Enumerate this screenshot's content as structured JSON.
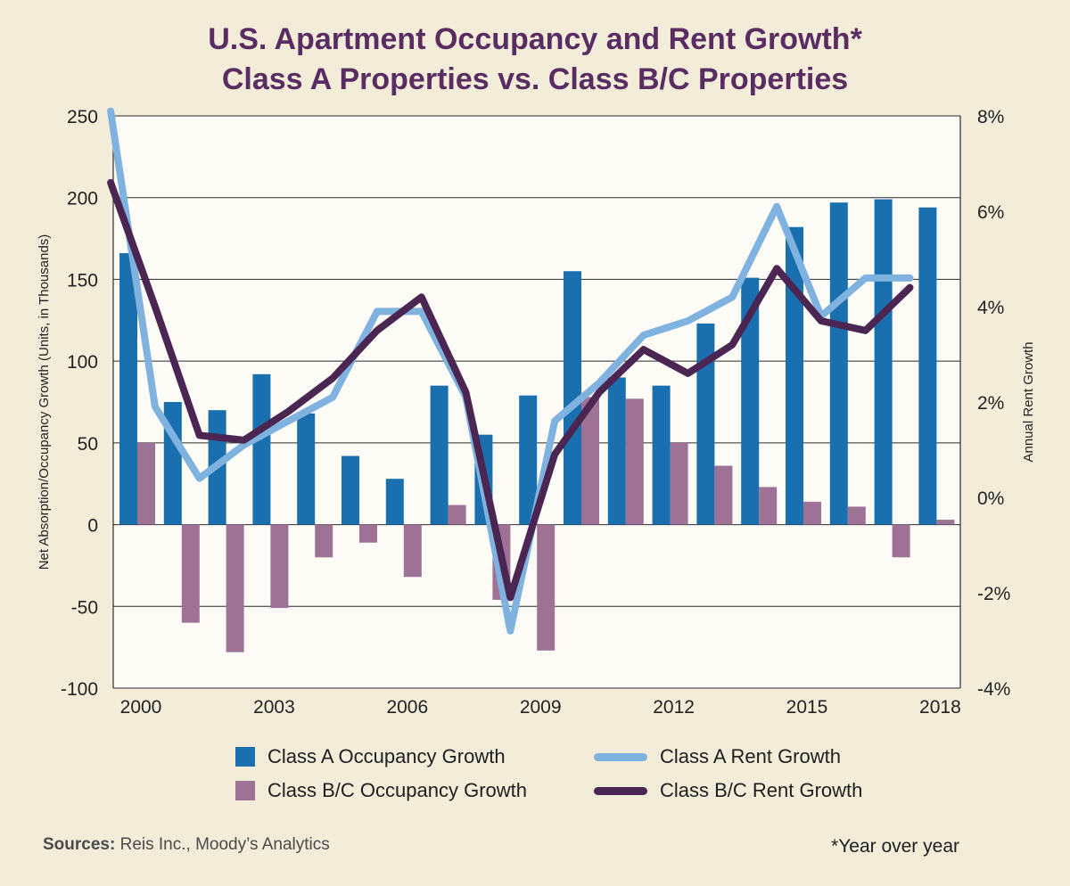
{
  "title_line1": "U.S. Apartment Occupancy and Rent Growth*",
  "title_line2": "Class A Properties vs. Class B/C Properties",
  "sources_label": "Sources:",
  "sources_text": "Reis Inc., Moody’s Analytics",
  "footnote": "*Year over year",
  "colors": {
    "background": "#f3ecd9",
    "plot_background": "#fdfbf6",
    "class_a_occupancy": "#1a6faf",
    "class_bc_occupancy": "#9e7295",
    "class_a_rent": "#7fb2de",
    "class_bc_rent": "#4b2652",
    "title": "#5a2d62"
  },
  "legend": {
    "class_a_occupancy": "Class A Occupancy Growth",
    "class_bc_occupancy": "Class B/C Occupancy Growth",
    "class_a_rent": "Class A Rent Growth",
    "class_bc_rent": "Class B/C Rent Growth"
  },
  "chart_data": {
    "type": "bar",
    "combo": "bars on left axis, lines on right axis",
    "x": [
      2000,
      2001,
      2002,
      2003,
      2004,
      2005,
      2006,
      2007,
      2008,
      2009,
      2010,
      2011,
      2012,
      2013,
      2014,
      2015,
      2016,
      2017,
      2018
    ],
    "x_tick_labels": [
      "2000",
      "2003",
      "2006",
      "2009",
      "2012",
      "2015",
      "2018"
    ],
    "ylabel": "Net Absorption/Occupancy Growth (Units, in Thousands)",
    "ylim": [
      -100,
      250
    ],
    "yticks": [
      "250",
      "200",
      "150",
      "100",
      "50",
      "0",
      "-50",
      "-100"
    ],
    "y2label": "Annual Rent Growth",
    "y2lim": [
      -4,
      8
    ],
    "y2ticks": [
      "8%",
      "6%",
      "4%",
      "2%",
      "0%",
      "-2%",
      "-4%"
    ],
    "grid": "horizontal",
    "series": [
      {
        "name": "Class A Occupancy Growth",
        "kind": "bar",
        "axis": "left",
        "values": [
          166,
          75,
          70,
          92,
          68,
          42,
          28,
          85,
          55,
          79,
          155,
          90,
          85,
          123,
          151,
          182,
          197,
          199,
          194
        ]
      },
      {
        "name": "Class B/C Occupancy Growth",
        "kind": "bar",
        "axis": "left",
        "values": [
          50,
          -60,
          -78,
          -51,
          -20,
          -11,
          -32,
          12,
          -46,
          -77,
          78,
          77,
          50,
          36,
          23,
          14,
          11,
          -20,
          3
        ]
      },
      {
        "name": "Class A Rent Growth",
        "kind": "line",
        "axis": "right",
        "points": [
          [
            1999.6,
            8.1
          ],
          [
            2000.6,
            1.9
          ],
          [
            2001.6,
            0.4
          ],
          [
            2002.6,
            1.1
          ],
          [
            2003.6,
            1.6
          ],
          [
            2004.6,
            2.1
          ],
          [
            2005.6,
            3.9
          ],
          [
            2006.6,
            3.9
          ],
          [
            2007.6,
            2.1
          ],
          [
            2008.6,
            -2.8
          ],
          [
            2009.6,
            1.6
          ],
          [
            2010.6,
            2.4
          ],
          [
            2011.6,
            3.4
          ],
          [
            2012.6,
            3.7
          ],
          [
            2013.6,
            4.2
          ],
          [
            2014.6,
            6.1
          ],
          [
            2015.6,
            3.8
          ],
          [
            2016.6,
            4.6
          ],
          [
            2017.6,
            4.6
          ]
        ]
      },
      {
        "name": "Class B/C Rent Growth",
        "kind": "line",
        "axis": "right",
        "points": [
          [
            1999.6,
            6.6
          ],
          [
            2000.6,
            4.0
          ],
          [
            2001.6,
            1.3
          ],
          [
            2002.6,
            1.2
          ],
          [
            2003.6,
            1.8
          ],
          [
            2004.6,
            2.5
          ],
          [
            2005.6,
            3.5
          ],
          [
            2006.6,
            4.2
          ],
          [
            2007.6,
            2.2
          ],
          [
            2008.6,
            -2.1
          ],
          [
            2009.6,
            0.9
          ],
          [
            2010.6,
            2.2
          ],
          [
            2011.6,
            3.1
          ],
          [
            2012.6,
            2.6
          ],
          [
            2013.6,
            3.2
          ],
          [
            2014.6,
            4.8
          ],
          [
            2015.6,
            3.7
          ],
          [
            2016.6,
            3.5
          ],
          [
            2017.6,
            4.4
          ]
        ]
      }
    ]
  }
}
